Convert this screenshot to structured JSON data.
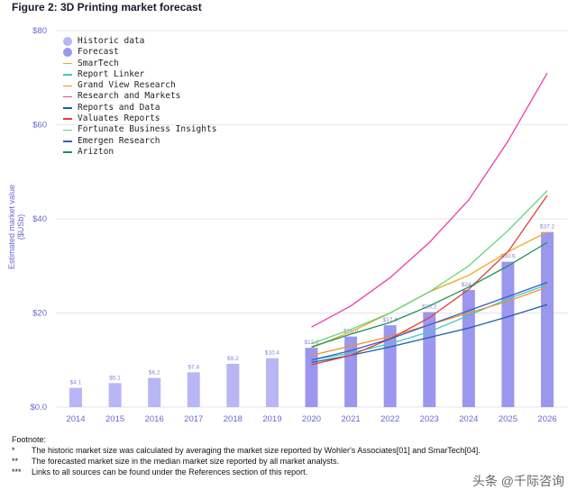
{
  "figure_title": "Figure 2: 3D Printing market forecast",
  "colors": {
    "historic": "#b9b6f6",
    "forecast": "#9b97ef",
    "axis_text": "#6a67d6",
    "grid": "#e6e6ee"
  },
  "chart_data": {
    "type": "bar",
    "title": "",
    "ylabel": "Estimated market value ($USb)",
    "xlabel": "",
    "ylim": [
      0,
      80
    ],
    "ytick_labels": [
      "$0.0",
      "$20",
      "$40",
      "$60",
      "$80"
    ],
    "ytick_values": [
      0,
      20,
      40,
      60,
      80
    ],
    "categories": [
      "2014",
      "2015",
      "2016",
      "2017",
      "2018",
      "2019",
      "2020",
      "2021",
      "2022",
      "2023",
      "2024",
      "2025",
      "2026"
    ],
    "bars": [
      {
        "year": "2014",
        "value": 4.1,
        "label": "$4.1",
        "kind": "historic"
      },
      {
        "year": "2015",
        "value": 5.1,
        "label": "$5.1",
        "kind": "historic"
      },
      {
        "year": "2016",
        "value": 6.2,
        "label": "$6.2",
        "kind": "historic"
      },
      {
        "year": "2017",
        "value": 7.4,
        "label": "$7.4",
        "kind": "historic"
      },
      {
        "year": "2018",
        "value": 9.2,
        "label": "$9.2",
        "kind": "historic"
      },
      {
        "year": "2019",
        "value": 10.4,
        "label": "$10.4",
        "kind": "historic"
      },
      {
        "year": "2020",
        "value": 12.6,
        "label": "$12.6",
        "kind": "forecast"
      },
      {
        "year": "2021",
        "value": 15.0,
        "label": "$15.0",
        "kind": "forecast"
      },
      {
        "year": "2022",
        "value": 17.4,
        "label": "$17.4",
        "kind": "forecast"
      },
      {
        "year": "2023",
        "value": 20.2,
        "label": "$20.2",
        "kind": "forecast"
      },
      {
        "year": "2024",
        "value": 24.9,
        "label": "$24.9",
        "kind": "forecast"
      },
      {
        "year": "2025",
        "value": 30.9,
        "label": "$30.9",
        "kind": "forecast"
      },
      {
        "year": "2026",
        "value": 37.2,
        "label": "$37.2",
        "kind": "forecast"
      }
    ],
    "series": [
      {
        "name": "SmarTech",
        "color": "#f5a623",
        "x": [
          "2020",
          "2021",
          "2022",
          "2023",
          "2024",
          "2025",
          "2026"
        ],
        "values": [
          12.6,
          16.0,
          20.0,
          24.5,
          28.0,
          33.0,
          37.2
        ]
      },
      {
        "name": "Report Linker",
        "color": "#3ec9c6",
        "x": [
          "2020",
          "2021",
          "2022",
          "2023",
          "2024",
          "2025",
          "2026"
        ],
        "values": [
          10.0,
          11.5,
          13.5,
          16.0,
          19.5,
          23.0,
          26.0
        ]
      },
      {
        "name": "Grand View Research",
        "color": "#f0902a",
        "x": [
          "2020",
          "2021",
          "2022",
          "2023",
          "2024",
          "2025",
          "2026"
        ],
        "values": [
          11.0,
          13.0,
          15.0,
          17.5,
          20.0,
          22.5,
          25.5
        ]
      },
      {
        "name": "Research and Markets",
        "color": "#ee3fa6",
        "x": [
          "2020",
          "2021",
          "2022",
          "2023",
          "2024",
          "2025",
          "2026"
        ],
        "values": [
          17.0,
          21.5,
          27.5,
          35.0,
          44.0,
          56.5,
          71.0
        ]
      },
      {
        "name": "Reports and Data",
        "color": "#1b5fa8",
        "x": [
          "2020",
          "2021",
          "2022",
          "2023",
          "2024",
          "2025",
          "2026"
        ],
        "values": [
          9.5,
          11.0,
          12.8,
          14.8,
          16.8,
          19.2,
          21.8
        ]
      },
      {
        "name": "Valuates Reports",
        "color": "#e0403a",
        "x": [
          "2020",
          "2021",
          "2022",
          "2023",
          "2024",
          "2025",
          "2026"
        ],
        "values": [
          9.0,
          11.0,
          14.5,
          19.0,
          25.0,
          33.0,
          45.0
        ]
      },
      {
        "name": "Fortunate Business Insights",
        "color": "#5fd67a",
        "x": [
          "2020",
          "2021",
          "2022",
          "2023",
          "2024",
          "2025",
          "2026"
        ],
        "values": [
          13.5,
          16.5,
          20.0,
          24.5,
          30.0,
          37.5,
          46.0
        ]
      },
      {
        "name": "Emergen Research",
        "color": "#3a5bbf",
        "x": [
          "2020",
          "2021",
          "2022",
          "2023",
          "2024",
          "2025",
          "2026"
        ],
        "values": [
          10.0,
          12.0,
          14.5,
          17.5,
          20.5,
          23.5,
          26.5
        ]
      },
      {
        "name": "Arizton",
        "color": "#1f8f5a",
        "x": [
          "2020",
          "2021",
          "2022",
          "2023",
          "2024",
          "2025",
          "2026"
        ],
        "values": [
          12.8,
          15.5,
          18.0,
          21.5,
          25.5,
          30.0,
          35.0
        ]
      }
    ],
    "legend": {
      "placement": "top-left",
      "items": [
        {
          "label": "Historic data",
          "marker": "dot",
          "color": "#b9b6f6"
        },
        {
          "label": "Forecast",
          "marker": "dot",
          "color": "#9b97ef"
        },
        {
          "label": "SmarTech",
          "marker": "line",
          "color": "#f5a623"
        },
        {
          "label": "Report Linker",
          "marker": "line",
          "color": "#3ec9c6"
        },
        {
          "label": "Grand View Research",
          "marker": "line",
          "color": "#f0902a"
        },
        {
          "label": "Research and Markets",
          "marker": "line",
          "color": "#ee3fa6"
        },
        {
          "label": "Reports and Data",
          "marker": "line",
          "color": "#1b5fa8"
        },
        {
          "label": "Valuates Reports",
          "marker": "line",
          "color": "#e0403a"
        },
        {
          "label": "Fortunate Business Insights",
          "marker": "line",
          "color": "#5fd67a"
        },
        {
          "label": "Emergen Research",
          "marker": "line",
          "color": "#3a5bbf"
        },
        {
          "label": "Arizton",
          "marker": "line",
          "color": "#1f8f5a"
        }
      ]
    },
    "grid": true
  },
  "footnote": {
    "heading": "Footnote:",
    "notes": [
      {
        "mark": "*",
        "text": "The historic market size was calculated by averaging the market size reported by Wohler's Associates[01] and SmarTech[04]."
      },
      {
        "mark": "**",
        "text": "The forecasted market size in the median market size reported by all market analysts."
      },
      {
        "mark": "***",
        "text": "Links to all sources can be found under the References section of this report."
      }
    ]
  },
  "watermark": "头条 @千际咨询"
}
